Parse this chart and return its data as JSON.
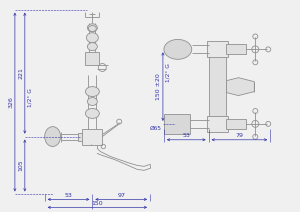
{
  "bg_color": "#f0f0f0",
  "line_color": "#909090",
  "dim_color": "#3333aa",
  "lw": 0.6,
  "tlw": 0.4,
  "dims_left": {
    "height_total": "326",
    "height_upper": "221",
    "height_lower": "105",
    "width_total": "150",
    "width_left": "53",
    "width_right": "97",
    "thread": "1/2° G"
  },
  "dims_right": {
    "height": "150 ±20",
    "width_left": "53",
    "width_right": "79",
    "thread": "1/2° G",
    "diameter": "Ø65"
  }
}
